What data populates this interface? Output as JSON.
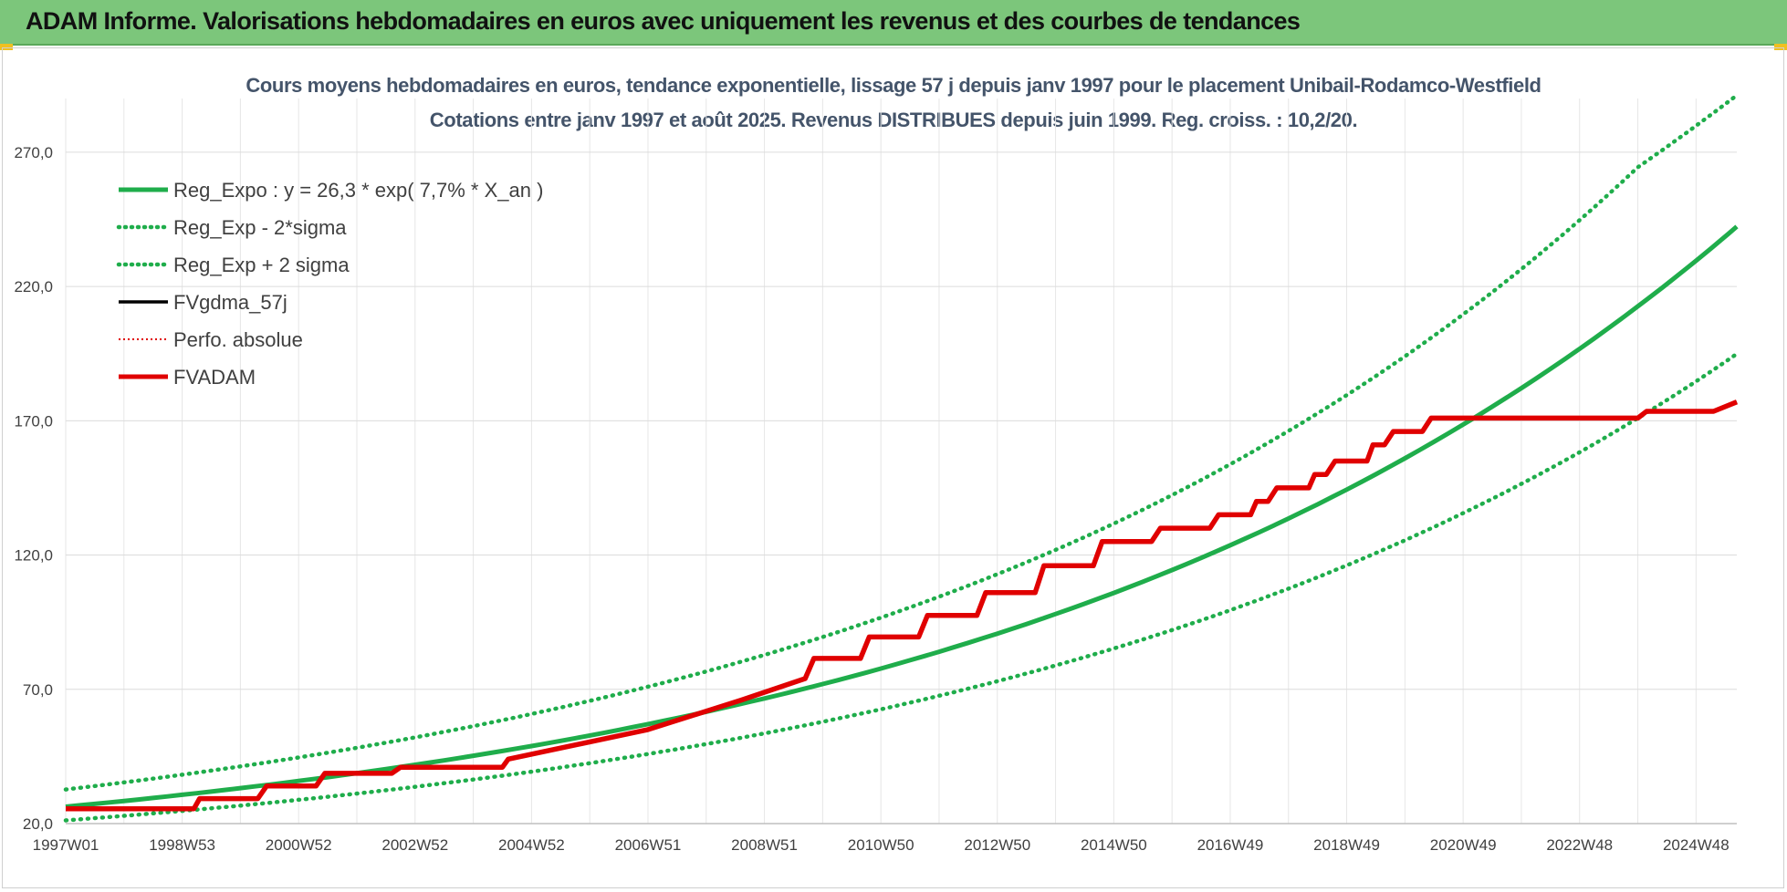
{
  "banner": {
    "title": "ADAM Informe. Valorisations hebdomadaires en euros avec uniquement les revenus et des courbes de tendances"
  },
  "chart_data": {
    "type": "line",
    "title": "Cours moyens hebdomadaires en euros, tendance exponentielle, lissage 57 j depuis janv 1997 pour le placement Unibail-Rodamco-Westfield",
    "subtitle": "Cotations entre janv 1997 et août 2025.  Revenus DISTRIBUES depuis juin 1999.  Reg. croiss. : 10,2/20.",
    "xlabel": "",
    "ylabel": "",
    "ylim": [
      20,
      290
    ],
    "xlim": [
      1997.0,
      2025.7
    ],
    "y_ticks": [
      "20,0",
      "70,0",
      "120,0",
      "170,0",
      "220,0",
      "270,0"
    ],
    "y_tick_values": [
      20,
      70,
      120,
      170,
      220,
      270
    ],
    "x_ticks": [
      "1997W01",
      "1998W53",
      "2000W52",
      "2002W52",
      "2004W52",
      "2006W51",
      "2008W51",
      "2010W50",
      "2012W50",
      "2014W50",
      "2016W49",
      "2018W49",
      "2020W49",
      "2022W48",
      "2024W48"
    ],
    "x_tick_values": [
      1997.0,
      1999.0,
      2001.0,
      2003.0,
      2005.0,
      2007.0,
      2009.0,
      2011.0,
      2013.0,
      2015.0,
      2017.0,
      2019.0,
      2021.0,
      2023.0,
      2025.0
    ],
    "grid": true,
    "legend_position": "top-left",
    "series": [
      {
        "name": "Reg_Expo : y = 26,3 * exp( 7,7% *  X_an )",
        "color": "#1fad4b",
        "style": "solid",
        "x": [
          1997.0,
          2000.0,
          2003.0,
          2006.0,
          2009.0,
          2012.0,
          2015.0,
          2018.0,
          2021.0,
          2024.0,
          2025.7
        ],
        "y": [
          26.3,
          33.2,
          41.9,
          52.8,
          66.6,
          84.0,
          105.9,
          133.6,
          168.6,
          212.6,
          242.3
        ]
      },
      {
        "name": "Reg_Exp - 2*sigma",
        "color": "#1fad4b",
        "style": "dotted",
        "x": [
          1997.0,
          2000.0,
          2003.0,
          2006.0,
          2009.0,
          2012.0,
          2015.0,
          2018.0,
          2021.0,
          2024.0,
          2025.7
        ],
        "y": [
          21.2,
          26.7,
          33.7,
          42.5,
          53.6,
          67.6,
          85.2,
          107.5,
          135.6,
          171.0,
          194.9
        ]
      },
      {
        "name": "Reg_Exp + 2 sigma",
        "color": "#1fad4b",
        "style": "dotted",
        "x": [
          1997.0,
          2000.0,
          2003.0,
          2006.0,
          2009.0,
          2012.0,
          2015.0,
          2018.0,
          2021.0,
          2024.0,
          2025.7
        ],
        "y": [
          32.7,
          41.3,
          52.1,
          65.7,
          82.8,
          104.5,
          131.7,
          166.2,
          209.6,
          264.4,
          291.2
        ]
      },
      {
        "name": "FVgdma_57j",
        "color": "#000000",
        "style": "solid",
        "x": [
          1997.0,
          1999.2,
          1999.3,
          2000.3,
          2000.45,
          2001.3,
          2001.45,
          2002.6,
          2002.75,
          2004.5,
          2004.6,
          2007.0,
          2008.6,
          2009.7,
          2009.85,
          2010.65,
          2010.8,
          2011.65,
          2011.8,
          2012.65,
          2012.8,
          2013.65,
          2013.8,
          2014.65,
          2014.8,
          2015.65,
          2015.8,
          2016.65,
          2016.8,
          2017.35,
          2017.45,
          2017.65,
          2017.8,
          2018.35,
          2018.45,
          2018.65,
          2018.8,
          2019.35,
          2019.45,
          2019.65,
          2019.8,
          2020.3,
          2020.45,
          2024.0,
          2024.15,
          2025.3,
          2025.7
        ],
        "y": [
          25.5,
          25.5,
          29.3,
          29.3,
          34.0,
          34.0,
          38.7,
          38.7,
          41.0,
          41.0,
          44.0,
          55.0,
          66.0,
          74.0,
          81.5,
          81.5,
          89.5,
          89.5,
          97.5,
          97.5,
          106.0,
          106.0,
          116.0,
          116.0,
          125.0,
          125.0,
          130.0,
          130.0,
          135.0,
          135.0,
          140.0,
          140.0,
          145.0,
          145.0,
          150.0,
          150.0,
          155.0,
          155.0,
          161.0,
          161.0,
          166.0,
          166.0,
          171.0,
          171.0,
          173.5,
          173.5,
          177.0
        ]
      },
      {
        "name": "Perfo. absolue",
        "color": "#e00000",
        "style": "dotted",
        "x": [
          1997.0,
          1999.2,
          1999.3,
          2000.3,
          2000.45,
          2001.3,
          2001.45,
          2002.6,
          2002.75,
          2004.5,
          2004.6,
          2007.0,
          2008.6,
          2009.7,
          2009.85,
          2010.65,
          2010.8,
          2011.65,
          2011.8,
          2012.65,
          2012.8,
          2013.65,
          2013.8,
          2014.65,
          2014.8,
          2015.65,
          2015.8,
          2016.65,
          2016.8,
          2017.35,
          2017.45,
          2017.65,
          2017.8,
          2018.35,
          2018.45,
          2018.65,
          2018.8,
          2019.35,
          2019.45,
          2019.65,
          2019.8,
          2020.3,
          2020.45,
          2024.0,
          2024.15,
          2025.3,
          2025.7
        ],
        "y": [
          25.5,
          25.5,
          29.3,
          29.3,
          34.0,
          34.0,
          38.7,
          38.7,
          41.0,
          41.0,
          44.0,
          55.0,
          66.0,
          74.0,
          81.5,
          81.5,
          89.5,
          89.5,
          97.5,
          97.5,
          106.0,
          106.0,
          116.0,
          116.0,
          125.0,
          125.0,
          130.0,
          130.0,
          135.0,
          135.0,
          140.0,
          140.0,
          145.0,
          145.0,
          150.0,
          150.0,
          155.0,
          155.0,
          161.0,
          161.0,
          166.0,
          166.0,
          171.0,
          171.0,
          173.5,
          173.5,
          177.0
        ]
      },
      {
        "name": "FVADAM",
        "color": "#e00000",
        "style": "solid",
        "x": [
          1997.0,
          1999.2,
          1999.3,
          2000.3,
          2000.45,
          2001.3,
          2001.45,
          2002.6,
          2002.75,
          2004.5,
          2004.6,
          2007.0,
          2008.6,
          2009.7,
          2009.85,
          2010.65,
          2010.8,
          2011.65,
          2011.8,
          2012.65,
          2012.8,
          2013.65,
          2013.8,
          2014.65,
          2014.8,
          2015.65,
          2015.8,
          2016.65,
          2016.8,
          2017.35,
          2017.45,
          2017.65,
          2017.8,
          2018.35,
          2018.45,
          2018.65,
          2018.8,
          2019.35,
          2019.45,
          2019.65,
          2019.8,
          2020.3,
          2020.45,
          2024.0,
          2024.15,
          2025.3,
          2025.7
        ],
        "y": [
          25.5,
          25.5,
          29.3,
          29.3,
          34.0,
          34.0,
          38.7,
          38.7,
          41.0,
          41.0,
          44.0,
          55.0,
          66.0,
          74.0,
          81.5,
          81.5,
          89.5,
          89.5,
          97.5,
          97.5,
          106.0,
          106.0,
          116.0,
          116.0,
          125.0,
          125.0,
          130.0,
          130.0,
          135.0,
          135.0,
          140.0,
          140.0,
          145.0,
          145.0,
          150.0,
          150.0,
          155.0,
          155.0,
          161.0,
          161.0,
          166.0,
          166.0,
          171.0,
          171.0,
          173.5,
          173.5,
          177.0
        ]
      }
    ]
  }
}
